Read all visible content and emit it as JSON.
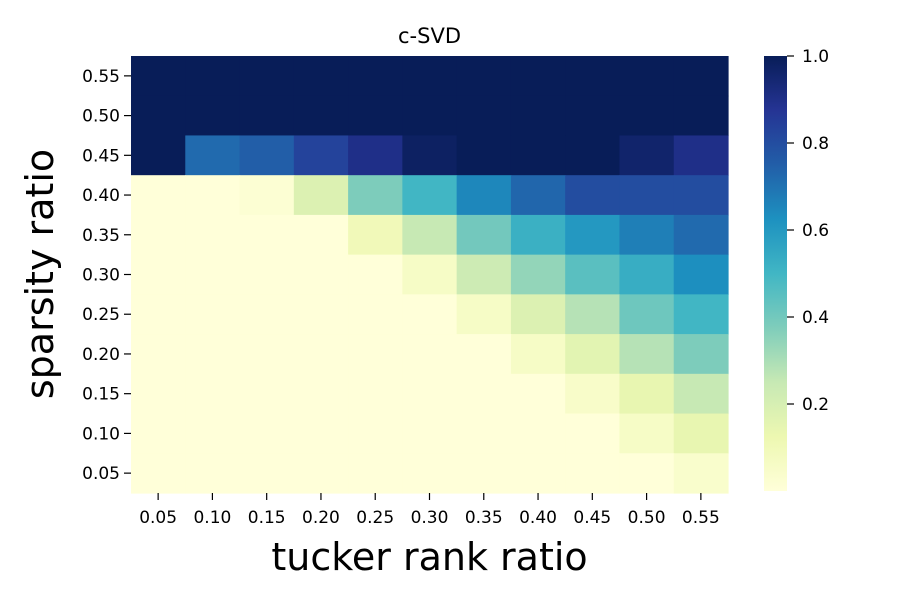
{
  "chart_data": {
    "type": "heatmap",
    "title": "c-SVD",
    "xlabel": "tucker rank ratio",
    "ylabel": "sparsity ratio",
    "x_categories": [
      "0.05",
      "0.10",
      "0.15",
      "0.20",
      "0.25",
      "0.30",
      "0.35",
      "0.40",
      "0.45",
      "0.50",
      "0.55"
    ],
    "y_categories": [
      "0.55",
      "0.50",
      "0.45",
      "0.40",
      "0.35",
      "0.30",
      "0.25",
      "0.20",
      "0.15",
      "0.10",
      "0.05"
    ],
    "values": [
      [
        1.0,
        1.0,
        1.0,
        1.0,
        1.0,
        1.0,
        1.0,
        1.0,
        1.0,
        1.0,
        1.0
      ],
      [
        1.0,
        1.0,
        1.0,
        1.0,
        1.0,
        1.0,
        1.0,
        1.0,
        1.0,
        1.0,
        1.0
      ],
      [
        1.0,
        0.72,
        0.75,
        0.83,
        0.9,
        0.98,
        1.0,
        1.0,
        1.0,
        0.96,
        0.9
      ],
      [
        0.0,
        0.0,
        0.02,
        0.18,
        0.38,
        0.5,
        0.65,
        0.73,
        0.8,
        0.8,
        0.8
      ],
      [
        0.0,
        0.0,
        0.0,
        0.0,
        0.1,
        0.25,
        0.4,
        0.52,
        0.6,
        0.67,
        0.72
      ],
      [
        0.0,
        0.0,
        0.0,
        0.0,
        0.0,
        0.06,
        0.23,
        0.34,
        0.45,
        0.53,
        0.63
      ],
      [
        0.0,
        0.0,
        0.0,
        0.0,
        0.0,
        0.0,
        0.06,
        0.18,
        0.28,
        0.41,
        0.5
      ],
      [
        0.0,
        0.0,
        0.0,
        0.0,
        0.0,
        0.0,
        0.0,
        0.06,
        0.16,
        0.28,
        0.38
      ],
      [
        0.0,
        0.0,
        0.0,
        0.0,
        0.0,
        0.0,
        0.0,
        0.0,
        0.05,
        0.14,
        0.25
      ],
      [
        0.0,
        0.0,
        0.0,
        0.0,
        0.0,
        0.0,
        0.0,
        0.0,
        0.0,
        0.06,
        0.14
      ],
      [
        0.0,
        0.0,
        0.0,
        0.0,
        0.0,
        0.0,
        0.0,
        0.0,
        0.0,
        0.0,
        0.04
      ]
    ],
    "colorbar": {
      "min": 0,
      "max": 1.0,
      "ticks": [
        0.2,
        0.4,
        0.6,
        0.8,
        1.0
      ],
      "tick_labels": [
        "0.2",
        "0.4",
        "0.6",
        "0.8",
        "1.0"
      ],
      "colormap": "YlGnBu",
      "colors": [
        "#ffffd9",
        "#edf8b1",
        "#c7e9b4",
        "#7fcdbb",
        "#41b6c4",
        "#1d91c0",
        "#225ea8",
        "#253494",
        "#081d58"
      ]
    },
    "grid": false,
    "legend": "colorbar-right"
  }
}
